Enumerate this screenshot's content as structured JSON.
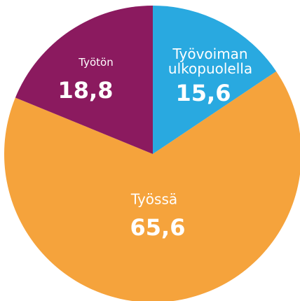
{
  "chart_data": {
    "type": "pie",
    "categories": [
      "Työvoiman ulkopuolella",
      "Työssä",
      "Työtön"
    ],
    "values": [
      15.6,
      65.6,
      18.8
    ],
    "value_labels": [
      "15,6",
      "65,6",
      "18,8"
    ],
    "colors": [
      "#29a9e0",
      "#f5a33c",
      "#8b1a5f"
    ]
  }
}
